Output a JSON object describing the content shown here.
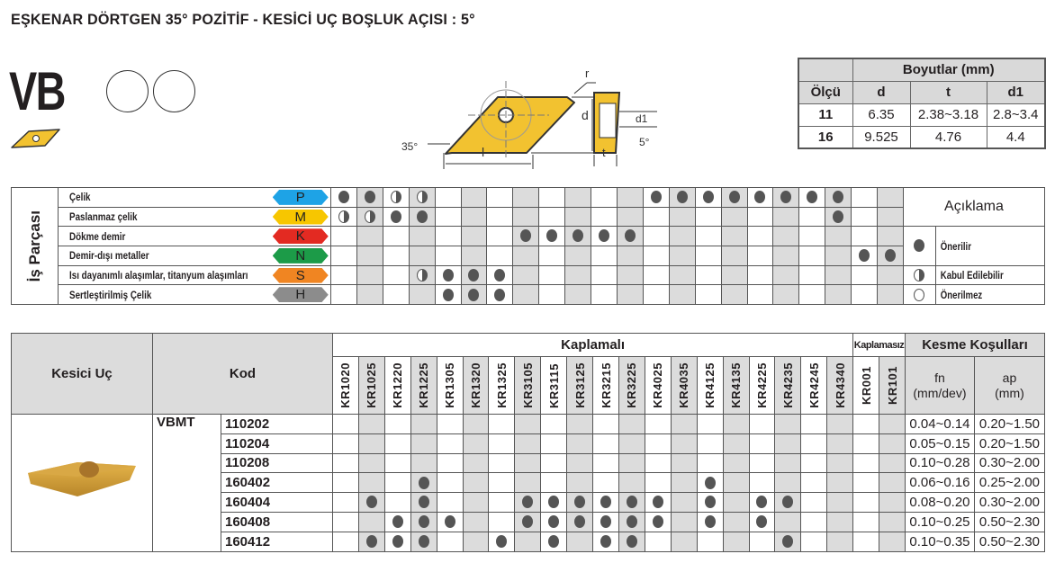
{
  "title": "EŞKENAR DÖRTGEN 35° POZİTİF - KESİCİ UÇ BOŞLUK AÇISI : 5°",
  "shape_code": "VB",
  "diagram": {
    "r": "r",
    "d": "d",
    "d1": "d1",
    "l": "l",
    "t": "t",
    "angle": "35°",
    "clearance": "5°"
  },
  "dimensions": {
    "header": "Boyutlar (mm)",
    "columns": [
      "Ölçü",
      "d",
      "t",
      "d1"
    ],
    "rows": [
      [
        "11",
        "6.35",
        "2.38~3.18",
        "2.8~3.4"
      ],
      [
        "16",
        "9.525",
        "4.76",
        "4.4"
      ]
    ]
  },
  "grades": [
    "KR1020",
    "KR1025",
    "KR1220",
    "KR1225",
    "KR1305",
    "KR1320",
    "KR1325",
    "KR3105",
    "KR3115",
    "KR3125",
    "KR3215",
    "KR3225",
    "KR4025",
    "KR4035",
    "KR4125",
    "KR4135",
    "KR4225",
    "KR4235",
    "KR4245",
    "KR4340",
    "KR001",
    "KR101"
  ],
  "workpiece": {
    "label": "İş Parçası",
    "materials": [
      {
        "name": "Çelik",
        "iso": "P",
        "color": "#1ea3e6",
        "full": [
          "KR1020",
          "KR1025",
          "KR4025",
          "KR4035",
          "KR4125",
          "KR4135",
          "KR4225",
          "KR4235",
          "KR4245",
          "KR4340"
        ],
        "half": [
          "KR1220",
          "KR1225"
        ]
      },
      {
        "name": "Paslanmaz çelik",
        "iso": "M",
        "color": "#f7c600",
        "full": [
          "KR1220",
          "KR1225",
          "KR4340"
        ],
        "half": [
          "KR1020",
          "KR1025"
        ]
      },
      {
        "name": "Dökme demir",
        "iso": "K",
        "color": "#e32a22",
        "full": [
          "KR3105",
          "KR3115",
          "KR3125",
          "KR3215",
          "KR3225"
        ],
        "half": []
      },
      {
        "name": "Demir-dışı metaller",
        "iso": "N",
        "color": "#1c9b48",
        "full": [
          "KR001",
          "KR101"
        ],
        "half": []
      },
      {
        "name": "Isı dayanımlı alaşımlar, titanyum alaşımları",
        "iso": "S",
        "color": "#f08522",
        "full": [
          "KR1305",
          "KR1320",
          "KR1325"
        ],
        "half": [
          "KR1225"
        ]
      },
      {
        "name": "Sertleştirilmiş Çelik",
        "iso": "H",
        "color": "#8c8c8c",
        "full": [
          "KR1305",
          "KR1320",
          "KR1325"
        ],
        "half": []
      }
    ]
  },
  "legend": {
    "title": "Açıklama",
    "items": [
      {
        "symbol": "full",
        "label": "Önerilir"
      },
      {
        "symbol": "half",
        "label": "Kabul Edilebilir"
      },
      {
        "symbol": "empty",
        "label": "Önerilmez"
      }
    ]
  },
  "inserts": {
    "col_insert": "Kesici Uç",
    "col_code": "Kod",
    "coated": "Kaplamalı",
    "uncoated": "Kaplamasız",
    "cutting": "Kesme Koşulları",
    "fn": "fn",
    "fn_unit": "(mm/dev)",
    "ap": "ap",
    "ap_unit": "(mm)",
    "family": "VBMT",
    "rows": [
      {
        "code": "110202",
        "fn": "0.04~0.14",
        "ap": "0.20~1.50",
        "grades": []
      },
      {
        "code": "110204",
        "fn": "0.05~0.15",
        "ap": "0.20~1.50",
        "grades": []
      },
      {
        "code": "110208",
        "fn": "0.10~0.28",
        "ap": "0.30~2.00",
        "grades": []
      },
      {
        "code": "160402",
        "fn": "0.06~0.16",
        "ap": "0.25~2.00",
        "grades": [
          "KR1225",
          "KR4125"
        ]
      },
      {
        "code": "160404",
        "fn": "0.08~0.20",
        "ap": "0.30~2.00",
        "grades": [
          "KR1025",
          "KR1225",
          "KR3105",
          "KR3115",
          "KR3125",
          "KR3215",
          "KR3225",
          "KR4025",
          "KR4125",
          "KR4225",
          "KR4235"
        ]
      },
      {
        "code": "160408",
        "fn": "0.10~0.25",
        "ap": "0.50~2.30",
        "grades": [
          "KR1220",
          "KR1225",
          "KR1305",
          "KR3105",
          "KR3115",
          "KR3125",
          "KR3215",
          "KR3225",
          "KR4025",
          "KR4125",
          "KR4225"
        ]
      },
      {
        "code": "160412",
        "fn": "0.10~0.35",
        "ap": "0.50~2.30",
        "grades": [
          "KR1025",
          "KR1220",
          "KR1225",
          "KR1325",
          "KR3115",
          "KR3215",
          "KR3225",
          "KR4235"
        ]
      }
    ]
  },
  "colors": {
    "insert_gold": "#f2c230",
    "dot": "#555555",
    "shade": "#dcdcdc"
  }
}
